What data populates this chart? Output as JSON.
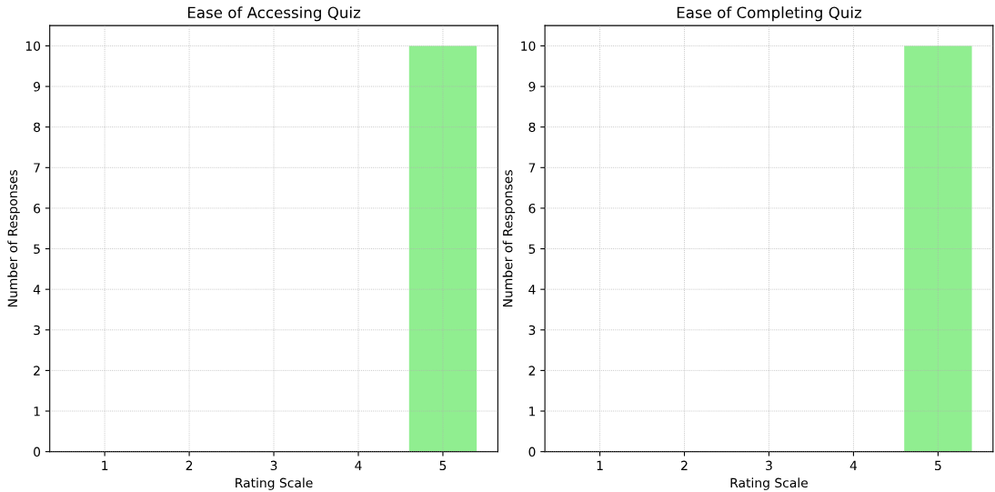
{
  "chart_data": [
    {
      "type": "bar",
      "title": "Ease of Accessing Quiz",
      "xlabel": "Rating Scale",
      "ylabel": "Number of Responses",
      "categories": [
        "1",
        "2",
        "3",
        "4",
        "5"
      ],
      "values": [
        0,
        0,
        0,
        0,
        10
      ],
      "color": "#90ee90",
      "ylim": [
        0,
        10.5
      ],
      "yticks": [
        0,
        1,
        2,
        3,
        4,
        5,
        6,
        7,
        8,
        9,
        10
      ],
      "grid": true
    },
    {
      "type": "bar",
      "title": "Ease of Completing Quiz",
      "xlabel": "Rating Scale",
      "ylabel": "Number of Responses",
      "categories": [
        "1",
        "2",
        "3",
        "4",
        "5"
      ],
      "values": [
        0,
        0,
        0,
        0,
        10
      ],
      "color": "#90ee90",
      "ylim": [
        0,
        10.5
      ],
      "yticks": [
        0,
        1,
        2,
        3,
        4,
        5,
        6,
        7,
        8,
        9,
        10
      ],
      "grid": true
    }
  ]
}
